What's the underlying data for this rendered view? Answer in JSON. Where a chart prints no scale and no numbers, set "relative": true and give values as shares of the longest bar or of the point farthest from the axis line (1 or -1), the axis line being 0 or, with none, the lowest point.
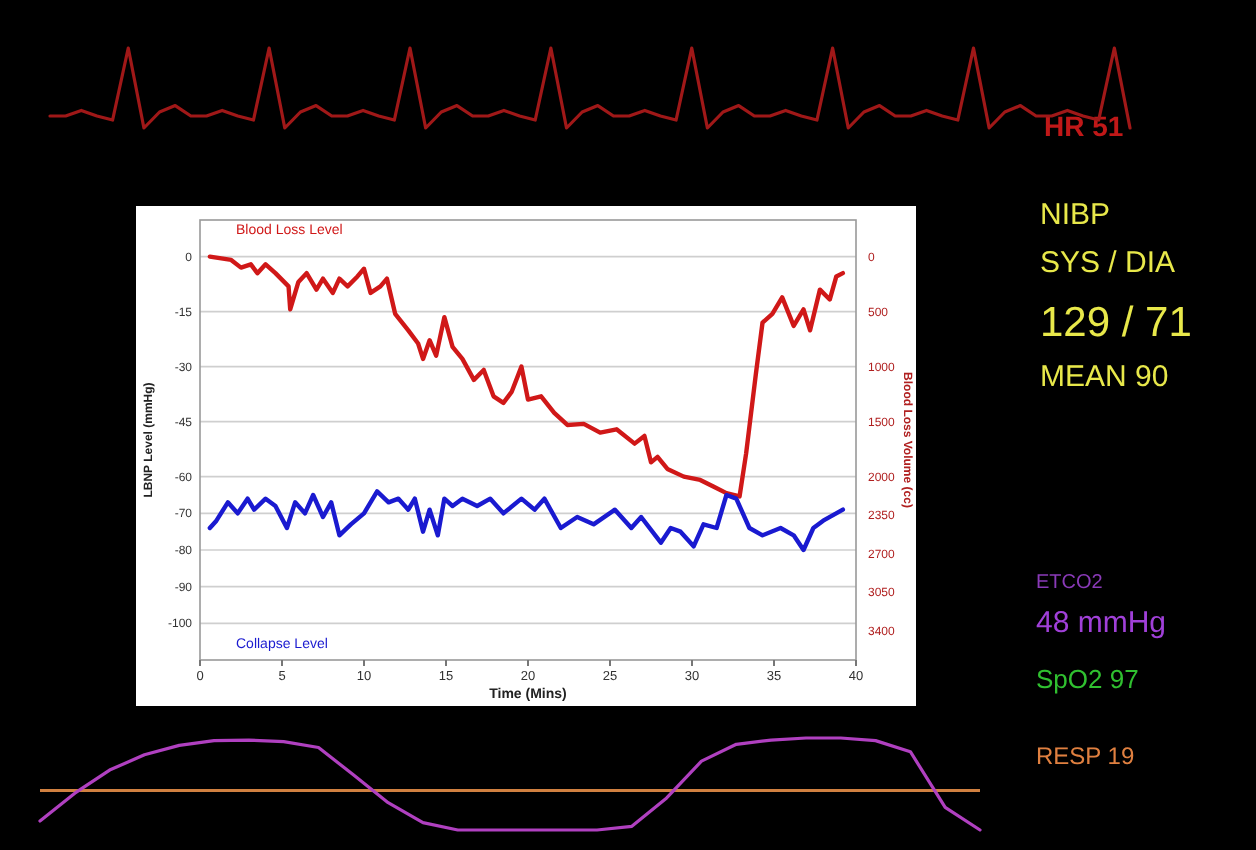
{
  "chart_data": [
    {
      "type": "line",
      "xlabel": "Time (Mins)",
      "ylabel": "LBNP Level (mmHg)",
      "y2label": "Blood Loss Volume (cc)",
      "xlim": [
        0,
        40
      ],
      "xticks": [
        0,
        5,
        10,
        15,
        20,
        25,
        30,
        35,
        40
      ],
      "ylim": [
        -110,
        10
      ],
      "yticks": [
        0,
        -15,
        -30,
        -45,
        -60,
        -70,
        -80,
        -90,
        -100
      ],
      "y2lim": [
        3667,
        -333
      ],
      "y2ticks": [
        0,
        500,
        1000,
        1500,
        2000,
        2350,
        2700,
        3050,
        3400
      ],
      "grid": "y",
      "series": [
        {
          "name": "Blood Loss Level",
          "color": "#d01818",
          "axis": "y2",
          "x": [
            0.6,
            1.9,
            2.5,
            3.1,
            3.5,
            4,
            4.6,
            5.4,
            5.5,
            6,
            6.5,
            7.1,
            7.5,
            8.1,
            8.5,
            9,
            9.6,
            10,
            10.4,
            11,
            11.4,
            11.9,
            12.7,
            13.3,
            13.6,
            14,
            14.4,
            14.9,
            15.4,
            16,
            16.7,
            17.3,
            17.9,
            18.5,
            19,
            19.6,
            20,
            20.8,
            21.6,
            22.4,
            23.4,
            24.4,
            25.4,
            26.5,
            27.1,
            27.5,
            27.9,
            28.5,
            29.5,
            30.5,
            31.3,
            32.1,
            32.9,
            33.3,
            33.9,
            34.3,
            34.9,
            35.5,
            36.2,
            36.8,
            37.2,
            37.8,
            38.4,
            38.8,
            39.2
          ],
          "values": [
            0,
            30,
            100,
            70,
            150,
            70,
            150,
            270,
            480,
            230,
            150,
            300,
            200,
            330,
            200,
            270,
            180,
            110,
            330,
            270,
            200,
            520,
            670,
            790,
            930,
            760,
            900,
            550,
            820,
            930,
            1120,
            1030,
            1270,
            1330,
            1230,
            1000,
            1300,
            1270,
            1420,
            1530,
            1520,
            1600,
            1570,
            1700,
            1630,
            1870,
            1820,
            1930,
            2000,
            2030,
            2090,
            2150,
            2180,
            1790,
            1060,
            600,
            520,
            370,
            630,
            480,
            670,
            300,
            390,
            180,
            150
          ]
        },
        {
          "name": "Collapse Level",
          "color": "#1a1ad0",
          "x": [
            0.6,
            1,
            1.7,
            2.3,
            2.9,
            3.3,
            4,
            4.6,
            5.3,
            5.8,
            6.4,
            6.9,
            7.5,
            8,
            8.5,
            9.2,
            10,
            10.8,
            11.5,
            12.1,
            12.7,
            13.1,
            13.6,
            14,
            14.5,
            14.9,
            15.4,
            16,
            16.9,
            17.7,
            18.5,
            19.6,
            20.4,
            21,
            22,
            23,
            24,
            25.3,
            26.3,
            26.9,
            28.1,
            28.7,
            29.3,
            30.1,
            30.7,
            31.5,
            32.1,
            32.7,
            33.5,
            34.3,
            35.4,
            36.2,
            36.8,
            37.4,
            38,
            39.2
          ],
          "values": [
            -74,
            -72,
            -67,
            -70,
            -66,
            -69,
            -66,
            -68,
            -74,
            -67,
            -70,
            -65,
            -71,
            -67,
            -76,
            -73,
            -70,
            -64,
            -67,
            -66,
            -69,
            -66,
            -75,
            -69,
            -76,
            -66,
            -68,
            -66,
            -68,
            -66,
            -70,
            -66,
            -69,
            -66,
            -74,
            -71,
            -73,
            -69,
            -74,
            -71,
            -78,
            -74,
            -75,
            -79,
            -73,
            -74,
            -65,
            -66,
            -74,
            -76,
            -74,
            -76,
            -80,
            -74,
            -72,
            -69
          ]
        }
      ],
      "annotations": [
        "HR 51",
        "NIBP",
        "SYS / DIA",
        "129 / 71",
        "MEAN 90",
        "ETCO2",
        "48 mmHg",
        "SpO2 97",
        "RESP 19"
      ]
    },
    {
      "type": "line",
      "relative": true,
      "categories": [
        null,
        null,
        null,
        null,
        null,
        null,
        null,
        null,
        null,
        null,
        null,
        null,
        null,
        null,
        null,
        null,
        null,
        null,
        null,
        null,
        null,
        null,
        null,
        null,
        null,
        null,
        null,
        null,
        null,
        null,
        null,
        null,
        null,
        null,
        null,
        null,
        null,
        null,
        null,
        null,
        null,
        null,
        null,
        null,
        null,
        null,
        null,
        null,
        null,
        null,
        null,
        null,
        null,
        null,
        null,
        null,
        null,
        null,
        null,
        null,
        null,
        null,
        null,
        null,
        null,
        null,
        null,
        null,
        null,
        null
      ],
      "series": [
        {
          "color": "#a01818",
          "values": [
            0.15,
            0.15,
            0.22,
            0.15,
            0.1,
            1,
            0,
            0.2,
            0.28,
            0.15,
            0.15,
            0.22,
            0.15,
            0.1,
            1,
            0,
            0.2,
            0.28,
            0.15,
            0.15,
            0.22,
            0.15,
            0.1,
            1,
            0,
            0.2,
            0.28,
            0.15,
            0.15,
            0.22,
            0.15,
            0.1,
            1,
            0,
            0.2,
            0.28,
            0.15,
            0.15,
            0.22,
            0.15,
            0.1,
            1,
            0,
            0.2,
            0.28,
            0.15,
            0.15,
            0.22,
            0.15,
            0.1,
            1,
            0,
            0.2,
            0.28,
            0.15,
            0.15,
            0.22,
            0.15,
            0.1,
            1,
            0,
            0.2,
            0.28,
            0.15,
            0.15,
            0.22,
            0.15,
            0.1,
            1,
            0
          ]
        }
      ]
    },
    {
      "type": "line",
      "relative": true,
      "categories": [
        null,
        null,
        null,
        null,
        null,
        null,
        null,
        null,
        null,
        null,
        null,
        null,
        null,
        null,
        null,
        null,
        null,
        null,
        null,
        null,
        null,
        null,
        null,
        null,
        null,
        null,
        null,
        null
      ],
      "series": [
        {
          "color": "#b040c0",
          "values": [
            -0.58,
            -0.05,
            0.39,
            0.68,
            0.86,
            0.95,
            0.96,
            0.93,
            0.82,
            0.3,
            -0.23,
            -0.61,
            -0.75,
            -0.75,
            -0.75,
            -0.75,
            -0.75,
            -0.68,
            -0.14,
            0.56,
            0.88,
            0.96,
            1,
            1,
            0.95,
            0.74,
            -0.32,
            -0.75
          ]
        }
      ],
      "ref_lines": [
        {
          "axis": "y",
          "value": 0,
          "color": "#d08040"
        }
      ]
    }
  ]
}
